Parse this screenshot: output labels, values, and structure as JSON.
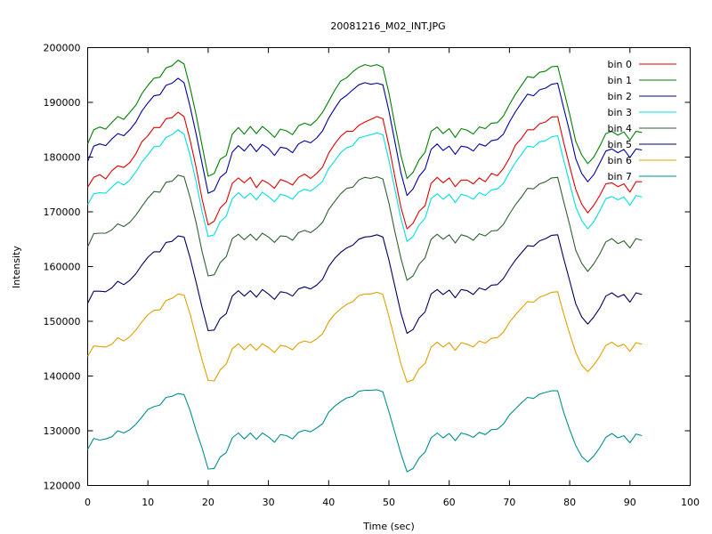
{
  "chart_data": {
    "type": "line",
    "title": "20081216_M02_INT.JPG",
    "xlabel": "Time (sec)",
    "ylabel": "Intensity",
    "xlim": [
      0,
      100
    ],
    "ylim": [
      120000,
      200000
    ],
    "x_ticks": [
      0,
      10,
      20,
      30,
      40,
      50,
      60,
      70,
      80,
      90,
      100
    ],
    "y_ticks": [
      120000,
      130000,
      140000,
      150000,
      160000,
      170000,
      180000,
      190000,
      200000
    ],
    "legend_position": "top-right",
    "grid": false,
    "x": [
      0,
      1,
      2,
      3,
      4,
      5,
      6,
      7,
      8,
      9,
      10,
      11,
      12,
      13,
      14,
      15,
      16,
      17,
      18,
      19,
      20,
      21,
      22,
      23,
      24,
      25,
      26,
      27,
      28,
      29,
      30,
      31,
      32,
      33,
      34,
      35,
      36,
      37,
      38,
      39,
      40,
      41,
      42,
      43,
      44,
      45,
      46,
      47,
      48,
      49,
      50,
      51,
      52,
      53,
      54,
      55,
      56,
      57,
      58,
      59,
      60,
      61,
      62,
      63,
      64,
      65,
      66,
      67,
      68,
      69,
      70,
      71,
      72,
      73,
      74,
      75,
      76,
      77,
      78,
      79,
      80,
      81,
      82,
      83,
      84,
      85,
      86,
      87,
      88,
      89,
      90,
      91,
      92
    ],
    "series": [
      {
        "name": "bin 0",
        "color": "#e00000",
        "values": [
          174500,
          176300,
          176800,
          176000,
          177500,
          178400,
          178100,
          179000,
          180600,
          182800,
          183900,
          185400,
          185400,
          187000,
          187200,
          188200,
          187400,
          183100,
          178100,
          172300,
          167600,
          168300,
          170700,
          171800,
          175200,
          176200,
          175300,
          176300,
          174400,
          175800,
          175200,
          174300,
          175900,
          175500,
          174900,
          176300,
          176900,
          176100,
          177000,
          178200,
          180700,
          182400,
          183800,
          184700,
          184700,
          185800,
          186400,
          186900,
          187400,
          187000,
          182100,
          176300,
          170800,
          166900,
          167900,
          170100,
          171100,
          175200,
          176300,
          175300,
          176200,
          174600,
          175800,
          175800,
          175100,
          176200,
          175500,
          177000,
          176600,
          177900,
          179800,
          182200,
          183400,
          185000,
          185000,
          186100,
          186400,
          187300,
          187400,
          182700,
          178300,
          174100,
          171400,
          169800,
          171200,
          173000,
          175100,
          175300,
          174600,
          175100,
          173600,
          175500,
          175500
        ]
      },
      {
        "name": "bin 1",
        "color": "#008000",
        "values": [
          182400,
          185000,
          185500,
          185100,
          186300,
          187400,
          186900,
          188200,
          189500,
          191600,
          193100,
          194400,
          194600,
          196300,
          196700,
          197700,
          197000,
          192700,
          187700,
          182100,
          176500,
          177000,
          179600,
          180300,
          184200,
          185400,
          184200,
          185600,
          184300,
          185600,
          184700,
          183600,
          185100,
          184800,
          184100,
          185700,
          186200,
          185800,
          186800,
          188200,
          190200,
          192200,
          193900,
          194500,
          195600,
          196400,
          196900,
          196600,
          196900,
          196400,
          191700,
          185800,
          180300,
          176100,
          177200,
          179500,
          180900,
          184700,
          185500,
          184300,
          185200,
          183600,
          185200,
          184900,
          184200,
          185500,
          185200,
          186200,
          186300,
          187500,
          189600,
          191500,
          193100,
          194700,
          194500,
          195500,
          195700,
          196500,
          196600,
          192300,
          187800,
          182900,
          180400,
          178800,
          180000,
          182000,
          184300,
          184700,
          184000,
          184600,
          183100,
          184700,
          184500
        ]
      },
      {
        "name": "bin 2",
        "color": "#0000a0",
        "values": [
          179200,
          182000,
          182400,
          182100,
          183300,
          184300,
          183900,
          185000,
          186400,
          188400,
          189900,
          191200,
          191400,
          193100,
          193500,
          194400,
          193600,
          189200,
          184200,
          178800,
          173400,
          173900,
          176300,
          177200,
          180900,
          182100,
          181100,
          182400,
          181000,
          182300,
          181600,
          180300,
          181800,
          181600,
          180800,
          182400,
          183000,
          182600,
          183500,
          184800,
          187100,
          188900,
          190500,
          191300,
          192300,
          193200,
          193600,
          193300,
          193500,
          193200,
          188400,
          182700,
          177100,
          173000,
          174200,
          176500,
          177800,
          181400,
          182400,
          181200,
          182000,
          180500,
          182000,
          181800,
          181100,
          182400,
          182000,
          183000,
          183200,
          184200,
          186400,
          188300,
          189900,
          191500,
          191200,
          192300,
          192600,
          193300,
          193500,
          189000,
          184600,
          179700,
          177000,
          175500,
          176800,
          178900,
          181100,
          181500,
          180800,
          181400,
          179900,
          181500,
          181300
        ]
      },
      {
        "name": "bin 3",
        "color": "#00e0e0",
        "values": [
          171300,
          173300,
          173500,
          173400,
          174500,
          175500,
          174900,
          175800,
          177300,
          179100,
          180400,
          181900,
          182000,
          183600,
          184100,
          185000,
          184200,
          180300,
          175500,
          170000,
          165500,
          165800,
          168200,
          169200,
          172400,
          173500,
          172500,
          173400,
          172200,
          173600,
          172800,
          171800,
          173200,
          172900,
          172300,
          173600,
          174100,
          173800,
          174600,
          175600,
          177900,
          179300,
          180800,
          181700,
          182100,
          183500,
          183800,
          184100,
          184400,
          184100,
          179400,
          174000,
          168800,
          164600,
          165500,
          167600,
          168800,
          172400,
          173300,
          172300,
          173200,
          171700,
          173200,
          172900,
          172300,
          173500,
          173000,
          174000,
          174200,
          175200,
          177200,
          179000,
          180500,
          182000,
          181800,
          182800,
          183000,
          183700,
          183900,
          179500,
          175200,
          170900,
          168400,
          166900,
          168200,
          170200,
          172400,
          172800,
          172200,
          172700,
          171200,
          173000,
          172700
        ]
      },
      {
        "name": "bin 4",
        "color": "#306030",
        "values": [
          163600,
          166000,
          166100,
          166100,
          166700,
          167800,
          167300,
          168100,
          169400,
          171000,
          172500,
          173700,
          173600,
          175400,
          175600,
          176700,
          176400,
          172600,
          168000,
          162700,
          158300,
          158500,
          160700,
          161800,
          165100,
          165900,
          164900,
          165900,
          164800,
          166100,
          165400,
          164400,
          165600,
          165500,
          164800,
          166200,
          166600,
          166200,
          167000,
          168100,
          170400,
          171900,
          173300,
          174300,
          174500,
          175800,
          176300,
          176100,
          176400,
          176000,
          171600,
          166300,
          161500,
          157500,
          158300,
          160400,
          161600,
          165000,
          165900,
          165000,
          165800,
          164300,
          165800,
          165500,
          164800,
          166000,
          165600,
          166500,
          166600,
          167700,
          169600,
          171300,
          172700,
          174300,
          174200,
          175100,
          175500,
          176200,
          176300,
          171900,
          167600,
          163000,
          160600,
          159100,
          160500,
          162300,
          164500,
          165100,
          164200,
          164700,
          163400,
          165100,
          164800
        ]
      },
      {
        "name": "bin 5",
        "color": "#000060",
        "values": [
          153300,
          155500,
          155500,
          155400,
          156100,
          157300,
          156700,
          157500,
          158700,
          160300,
          161700,
          162700,
          162700,
          164400,
          164600,
          165600,
          165400,
          161600,
          157100,
          152500,
          148300,
          148400,
          150500,
          151400,
          154600,
          155600,
          154600,
          155600,
          154400,
          155800,
          155000,
          154000,
          155400,
          155200,
          154600,
          155900,
          156300,
          155900,
          156600,
          157700,
          160000,
          161500,
          162600,
          163400,
          163900,
          165000,
          165400,
          165500,
          165800,
          165400,
          161200,
          156300,
          151500,
          147800,
          148500,
          150600,
          151700,
          155000,
          155800,
          154900,
          155700,
          154300,
          155800,
          155600,
          154900,
          156100,
          155700,
          156600,
          156700,
          157800,
          159600,
          161200,
          162500,
          163800,
          163700,
          164700,
          165100,
          165700,
          165800,
          161500,
          157400,
          153200,
          150800,
          149500,
          150800,
          152400,
          154600,
          155200,
          154400,
          154900,
          153500,
          155200,
          154900
        ]
      },
      {
        "name": "bin 6",
        "color": "#e0a000",
        "values": [
          143600,
          145500,
          145400,
          145300,
          145800,
          147000,
          146400,
          147200,
          148400,
          149900,
          151200,
          152000,
          152100,
          153800,
          154200,
          155000,
          154800,
          151300,
          147000,
          142900,
          139200,
          139100,
          141100,
          142200,
          145000,
          145900,
          144800,
          145800,
          144700,
          145900,
          145200,
          144300,
          145600,
          145400,
          144800,
          146000,
          146400,
          146100,
          146800,
          147700,
          149900,
          151300,
          152300,
          153100,
          153600,
          154700,
          155000,
          155000,
          155300,
          154900,
          150900,
          146500,
          142200,
          138900,
          139300,
          141300,
          142300,
          145300,
          146200,
          145300,
          146100,
          144700,
          146100,
          145800,
          145300,
          146400,
          146000,
          146900,
          147000,
          148000,
          149800,
          151200,
          152400,
          153600,
          153500,
          154400,
          154800,
          155300,
          155400,
          151400,
          147700,
          144300,
          142000,
          140800,
          142000,
          143600,
          145600,
          146200,
          145400,
          145800,
          144500,
          146100,
          145800
        ]
      },
      {
        "name": "bin 7",
        "color": "#009090",
        "values": [
          126600,
          128600,
          128300,
          128500,
          128900,
          130000,
          129600,
          130200,
          131200,
          132500,
          133900,
          134400,
          134700,
          136100,
          136300,
          136800,
          136600,
          133700,
          130000,
          126800,
          123000,
          123100,
          125200,
          126000,
          128700,
          129600,
          128500,
          129600,
          128400,
          129600,
          128900,
          127900,
          129300,
          129100,
          128500,
          129700,
          130100,
          129800,
          130500,
          131300,
          133400,
          134500,
          135300,
          136000,
          136300,
          137200,
          137400,
          137400,
          137500,
          137100,
          133500,
          129600,
          125800,
          122500,
          123100,
          125000,
          126100,
          128700,
          129600,
          128700,
          129500,
          128200,
          129600,
          129300,
          128800,
          129700,
          129300,
          130200,
          130300,
          131200,
          132900,
          134000,
          135100,
          136100,
          135900,
          136700,
          137000,
          137300,
          137300,
          133400,
          130200,
          127300,
          125300,
          124300,
          125400,
          126900,
          128800,
          129500,
          128700,
          129100,
          127800,
          129400,
          129100
        ]
      }
    ]
  }
}
